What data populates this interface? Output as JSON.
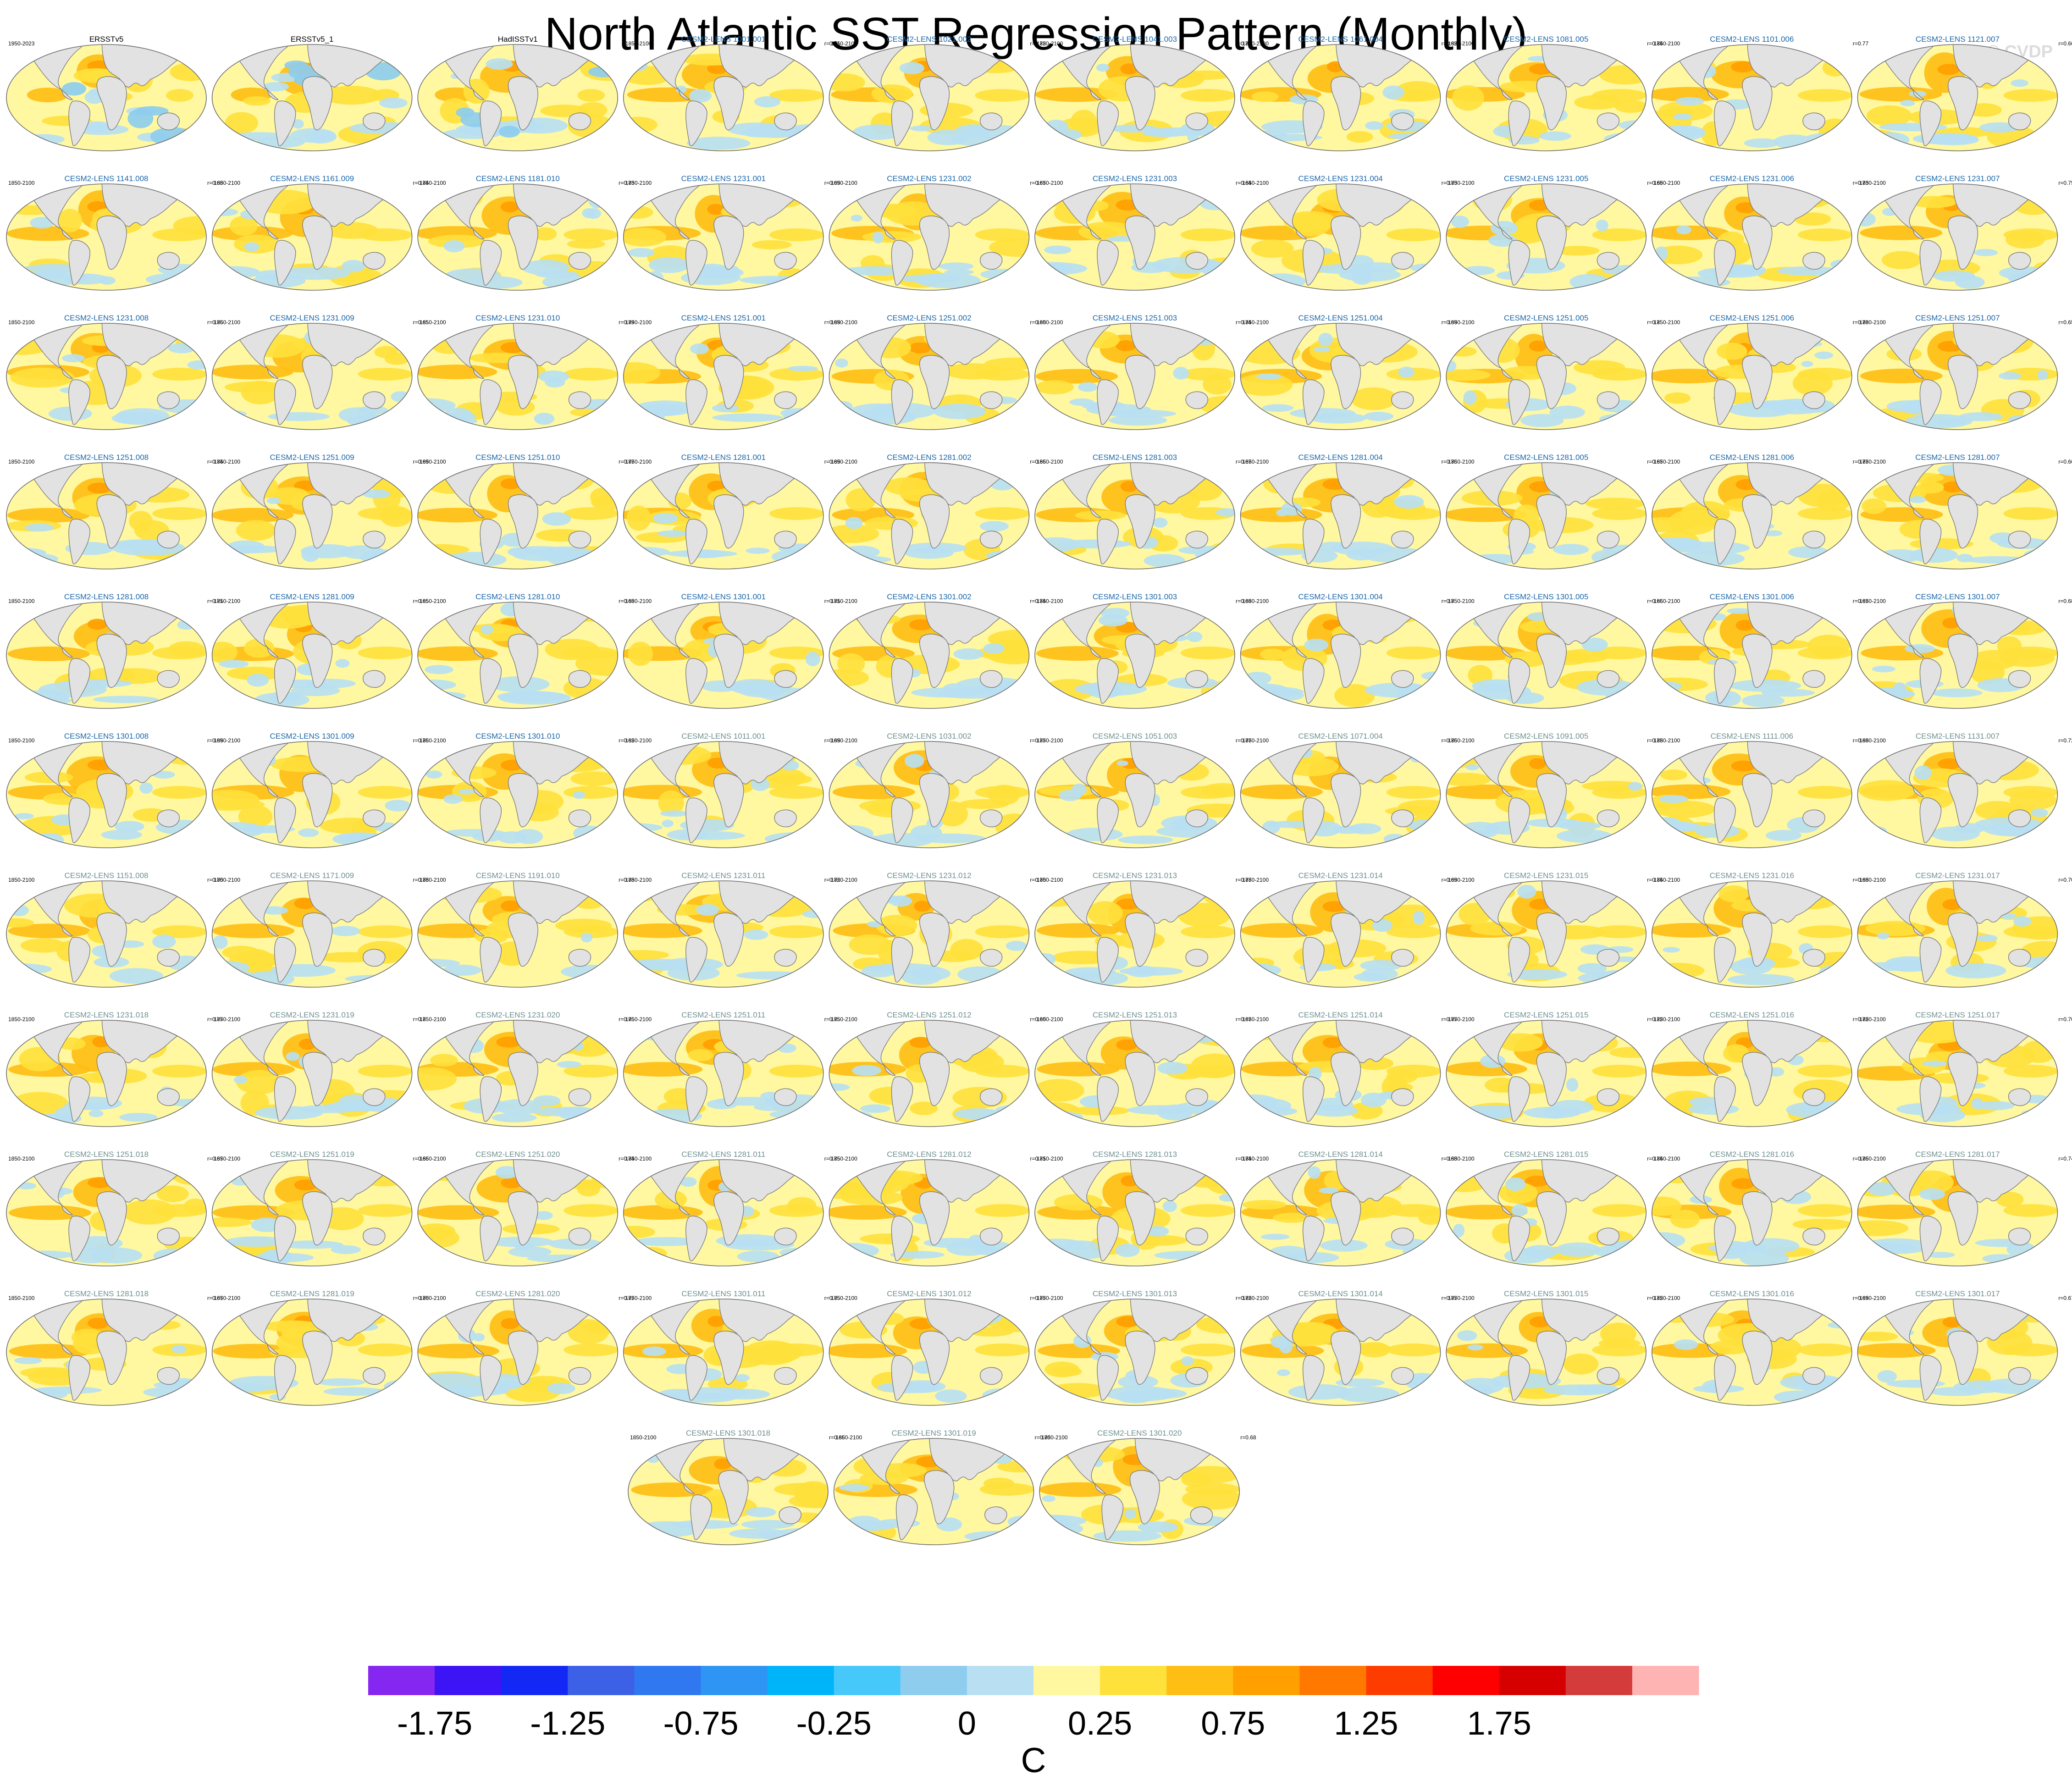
{
  "title": "North Atlantic SST Regression Pattern (Monthly)",
  "watermark": "© CVDP",
  "chart_data": {
    "type": "map-panel-grid",
    "title": "North Atlantic SST Regression Pattern (Monthly)",
    "colorbar": {
      "unit": "C",
      "colors": [
        "#8527f0",
        "#3c14f5",
        "#1428f5",
        "#3c60e6",
        "#2f78f0",
        "#2e95f5",
        "#00b4fa",
        "#46c8fa",
        "#8ecdee",
        "#b9e0f2",
        "#fff8a0",
        "#ffe13c",
        "#ffbe14",
        "#ffa000",
        "#ff7800",
        "#ff3c00",
        "#ff0000",
        "#d60000",
        "#d43c3c",
        "#ffb4b4"
      ],
      "tick_labels": [
        "-1.75",
        "-1.25",
        "-0.75",
        "-0.25",
        "0",
        "0.25",
        "0.75",
        "1.25",
        "1.75"
      ],
      "boundaries": [
        -2.0,
        -1.75,
        -1.5,
        -1.25,
        -1.0,
        -0.75,
        -0.5,
        -0.25,
        -0.1,
        0.0,
        0.1,
        0.25,
        0.5,
        0.75,
        1.0,
        1.25,
        1.5,
        1.75,
        2.0
      ]
    },
    "panels": [
      {
        "name": "ERSSTv5",
        "period": "1950-2023",
        "r": "",
        "kind": "obs"
      },
      {
        "name": "ERSSTv5_1",
        "period": "",
        "r": "",
        "kind": "obs"
      },
      {
        "name": "HadISSTv1",
        "period": "",
        "r": "",
        "kind": "obs"
      },
      {
        "name": "CESM2-LENS 1001.001",
        "period": "1850-2100",
        "r": "r=0.71",
        "kind": "blue"
      },
      {
        "name": "CESM2-LENS 1021.002",
        "period": "1850-2100",
        "r": "r=0.72",
        "kind": "blue"
      },
      {
        "name": "CESM2-LENS 1041.003",
        "period": "1850-2100",
        "r": "r=0.74",
        "kind": "blue"
      },
      {
        "name": "CESM2-LENS 1061.004",
        "period": "1850-2100",
        "r": "r=0.62",
        "kind": "blue"
      },
      {
        "name": "CESM2-LENS 1081.005",
        "period": "1850-2100",
        "r": "r=0.74",
        "kind": "blue"
      },
      {
        "name": "CESM2-LENS 1101.006",
        "period": "1850-2100",
        "r": "r=0.77",
        "kind": "blue"
      },
      {
        "name": "CESM2-LENS 1121.007",
        "period": "",
        "r": "r=0.66",
        "kind": "blue"
      },
      {
        "name": "CESM2-LENS 1141.008",
        "period": "1850-2100",
        "r": "r=0.68",
        "kind": "blue"
      },
      {
        "name": "CESM2-LENS 1161.009",
        "period": "1850-2100",
        "r": "r=0.74",
        "kind": "blue"
      },
      {
        "name": "CESM2-LENS 1181.010",
        "period": "1850-2100",
        "r": "r=0.73",
        "kind": "blue"
      },
      {
        "name": "CESM2-LENS 1231.001",
        "period": "1850-2100",
        "r": "r=0.69",
        "kind": "blue"
      },
      {
        "name": "CESM2-LENS 1231.002",
        "period": "1850-2100",
        "r": "r=0.67",
        "kind": "blue"
      },
      {
        "name": "CESM2-LENS 1231.003",
        "period": "1850-2100",
        "r": "r=0.64",
        "kind": "blue"
      },
      {
        "name": "CESM2-LENS 1231.004",
        "period": "1850-2100",
        "r": "r=0.73",
        "kind": "blue"
      },
      {
        "name": "CESM2-LENS 1231.005",
        "period": "1850-2100",
        "r": "r=0.68",
        "kind": "blue"
      },
      {
        "name": "CESM2-LENS 1231.006",
        "period": "1850-2100",
        "r": "r=0.73",
        "kind": "blue"
      },
      {
        "name": "CESM2-LENS 1231.007",
        "period": "1850-2100",
        "r": "r=0.75",
        "kind": "blue"
      },
      {
        "name": "CESM2-LENS 1231.008",
        "period": "1850-2100",
        "r": "r=0.76",
        "kind": "blue"
      },
      {
        "name": "CESM2-LENS 1231.009",
        "period": "1850-2100",
        "r": "r=0.65",
        "kind": "blue"
      },
      {
        "name": "CESM2-LENS 1231.010",
        "period": "1850-2100",
        "r": "r=0.79",
        "kind": "blue"
      },
      {
        "name": "CESM2-LENS 1251.001",
        "period": "1850-2100",
        "r": "r=0.69",
        "kind": "blue"
      },
      {
        "name": "CESM2-LENS 1251.002",
        "period": "1850-2100",
        "r": "r=0.60",
        "kind": "blue"
      },
      {
        "name": "CESM2-LENS 1251.003",
        "period": "1850-2100",
        "r": "r=0.74",
        "kind": "blue"
      },
      {
        "name": "CESM2-LENS 1251.004",
        "period": "1850-2100",
        "r": "r=0.69",
        "kind": "blue"
      },
      {
        "name": "CESM2-LENS 1251.005",
        "period": "1850-2100",
        "r": "r=0.7",
        "kind": "blue"
      },
      {
        "name": "CESM2-LENS 1251.006",
        "period": "1850-2100",
        "r": "r=0.78",
        "kind": "blue"
      },
      {
        "name": "CESM2-LENS 1251.007",
        "period": "1850-2100",
        "r": "r=0.65",
        "kind": "blue"
      },
      {
        "name": "CESM2-LENS 1251.008",
        "period": "1850-2100",
        "r": "r=0.74",
        "kind": "blue"
      },
      {
        "name": "CESM2-LENS 1251.009",
        "period": "1850-2100",
        "r": "r=0.69",
        "kind": "blue"
      },
      {
        "name": "CESM2-LENS 1251.010",
        "period": "1850-2100",
        "r": "r=0.77",
        "kind": "blue"
      },
      {
        "name": "CESM2-LENS 1281.001",
        "period": "1850-2100",
        "r": "r=0.69",
        "kind": "blue"
      },
      {
        "name": "CESM2-LENS 1281.002",
        "period": "1850-2100",
        "r": "r=0.66",
        "kind": "blue"
      },
      {
        "name": "CESM2-LENS 1281.003",
        "period": "1850-2100",
        "r": "r=0.67",
        "kind": "blue"
      },
      {
        "name": "CESM2-LENS 1281.004",
        "period": "1850-2100",
        "r": "r=0.76",
        "kind": "blue"
      },
      {
        "name": "CESM2-LENS 1281.005",
        "period": "1850-2100",
        "r": "r=0.67",
        "kind": "blue"
      },
      {
        "name": "CESM2-LENS 1281.006",
        "period": "1850-2100",
        "r": "r=0.77",
        "kind": "blue"
      },
      {
        "name": "CESM2-LENS 1281.007",
        "period": "1850-2100",
        "r": "r=0.66",
        "kind": "blue"
      },
      {
        "name": "CESM2-LENS 1281.008",
        "period": "1850-2100",
        "r": "r=0.71",
        "kind": "blue"
      },
      {
        "name": "CESM2-LENS 1281.009",
        "period": "1850-2100",
        "r": "r=0.65",
        "kind": "blue"
      },
      {
        "name": "CESM2-LENS 1281.010",
        "period": "1850-2100",
        "r": "r=0.68",
        "kind": "blue"
      },
      {
        "name": "CESM2-LENS 1301.001",
        "period": "1850-2100",
        "r": "r=0.71",
        "kind": "blue"
      },
      {
        "name": "CESM2-LENS 1301.002",
        "period": "1850-2100",
        "r": "r=0.74",
        "kind": "blue"
      },
      {
        "name": "CESM2-LENS 1301.003",
        "period": "1850-2100",
        "r": "r=0.68",
        "kind": "blue"
      },
      {
        "name": "CESM2-LENS 1301.004",
        "period": "1850-2100",
        "r": "r=0.7",
        "kind": "blue"
      },
      {
        "name": "CESM2-LENS 1301.005",
        "period": "1850-2100",
        "r": "r=0.66",
        "kind": "blue"
      },
      {
        "name": "CESM2-LENS 1301.006",
        "period": "1850-2100",
        "r": "r=0.67",
        "kind": "blue"
      },
      {
        "name": "CESM2-LENS 1301.007",
        "period": "1850-2100",
        "r": "r=0.68",
        "kind": "blue"
      },
      {
        "name": "CESM2-LENS 1301.008",
        "period": "1850-2100",
        "r": "r=0.69",
        "kind": "blue"
      },
      {
        "name": "CESM2-LENS 1301.009",
        "period": "1850-2100",
        "r": "r=0.76",
        "kind": "blue"
      },
      {
        "name": "CESM2-LENS 1301.010",
        "period": "1850-2100",
        "r": "r=0.62",
        "kind": "blue"
      },
      {
        "name": "CESM2-LENS 1011.001",
        "period": "1850-2100",
        "r": "r=0.69",
        "kind": "gray"
      },
      {
        "name": "CESM2-LENS 1031.002",
        "period": "1850-2100",
        "r": "r=0.77",
        "kind": "gray"
      },
      {
        "name": "CESM2-LENS 1051.003",
        "period": "1850-2100",
        "r": "r=0.77",
        "kind": "gray"
      },
      {
        "name": "CESM2-LENS 1071.004",
        "period": "1850-2100",
        "r": "r=0.76",
        "kind": "gray"
      },
      {
        "name": "CESM2-LENS 1091.005",
        "period": "1850-2100",
        "r": "r=0.78",
        "kind": "gray"
      },
      {
        "name": "CESM2-LENS 1111.006",
        "period": "1850-2100",
        "r": "r=0.68",
        "kind": "gray"
      },
      {
        "name": "CESM2-LENS 1131.007",
        "period": "1850-2100",
        "r": "r=0.72",
        "kind": "gray"
      },
      {
        "name": "CESM2-LENS 1151.008",
        "period": "1850-2100",
        "r": "r=0.70",
        "kind": "gray"
      },
      {
        "name": "CESM2-LENS 1171.009",
        "period": "1850-2100",
        "r": "r=0.78",
        "kind": "gray"
      },
      {
        "name": "CESM2-LENS 1191.010",
        "period": "1850-2100",
        "r": "r=0.78",
        "kind": "gray"
      },
      {
        "name": "CESM2-LENS 1231.011",
        "period": "1850-2100",
        "r": "r=0.72",
        "kind": "gray"
      },
      {
        "name": "CESM2-LENS 1231.012",
        "period": "1850-2100",
        "r": "r=0.70",
        "kind": "gray"
      },
      {
        "name": "CESM2-LENS 1231.013",
        "period": "1850-2100",
        "r": "r=0.77",
        "kind": "gray"
      },
      {
        "name": "CESM2-LENS 1231.014",
        "period": "1850-2100",
        "r": "r=0.69",
        "kind": "gray"
      },
      {
        "name": "CESM2-LENS 1231.015",
        "period": "1850-2100",
        "r": "r=0.74",
        "kind": "gray"
      },
      {
        "name": "CESM2-LENS 1231.016",
        "period": "1850-2100",
        "r": "r=0.68",
        "kind": "gray"
      },
      {
        "name": "CESM2-LENS 1231.017",
        "period": "1850-2100",
        "r": "r=0.70",
        "kind": "gray"
      },
      {
        "name": "CESM2-LENS 1231.018",
        "period": "1850-2100",
        "r": "r=0.77",
        "kind": "gray"
      },
      {
        "name": "CESM2-LENS 1231.019",
        "period": "1850-2100",
        "r": "r=0.7",
        "kind": "gray"
      },
      {
        "name": "CESM2-LENS 1231.020",
        "period": "1850-2100",
        "r": "r=0.75",
        "kind": "gray"
      },
      {
        "name": "CESM2-LENS 1251.011",
        "period": "1850-2100",
        "r": "r=0.75",
        "kind": "gray"
      },
      {
        "name": "CESM2-LENS 1251.012",
        "period": "1850-2100",
        "r": "r=0.60",
        "kind": "gray"
      },
      {
        "name": "CESM2-LENS 1251.013",
        "period": "1850-2100",
        "r": "r=0.67",
        "kind": "gray"
      },
      {
        "name": "CESM2-LENS 1251.014",
        "period": "1850-2100",
        "r": "r=0.77",
        "kind": "gray"
      },
      {
        "name": "CESM2-LENS 1251.015",
        "period": "1850-2100",
        "r": "r=0.72",
        "kind": "gray"
      },
      {
        "name": "CESM2-LENS 1251.016",
        "period": "1850-2100",
        "r": "r=0.72",
        "kind": "gray"
      },
      {
        "name": "CESM2-LENS 1251.017",
        "period": "1850-2100",
        "r": "r=0.70",
        "kind": "gray"
      },
      {
        "name": "CESM2-LENS 1251.018",
        "period": "1850-2100",
        "r": "r=0.67",
        "kind": "gray"
      },
      {
        "name": "CESM2-LENS 1251.019",
        "period": "1850-2100",
        "r": "r=0.66",
        "kind": "gray"
      },
      {
        "name": "CESM2-LENS 1251.020",
        "period": "1850-2100",
        "r": "r=0.74",
        "kind": "gray"
      },
      {
        "name": "CESM2-LENS 1281.011",
        "period": "1850-2100",
        "r": "r=0.75",
        "kind": "gray"
      },
      {
        "name": "CESM2-LENS 1281.012",
        "period": "1850-2100",
        "r": "r=0.71",
        "kind": "gray"
      },
      {
        "name": "CESM2-LENS 1281.013",
        "period": "1850-2100",
        "r": "r=0.74",
        "kind": "gray"
      },
      {
        "name": "CESM2-LENS 1281.014",
        "period": "1850-2100",
        "r": "r=0.68",
        "kind": "gray"
      },
      {
        "name": "CESM2-LENS 1281.015",
        "period": "1850-2100",
        "r": "r=0.74",
        "kind": "gray"
      },
      {
        "name": "CESM2-LENS 1281.016",
        "period": "1850-2100",
        "r": "r=0.76",
        "kind": "gray"
      },
      {
        "name": "CESM2-LENS 1281.017",
        "period": "1850-2100",
        "r": "r=0.74",
        "kind": "gray"
      },
      {
        "name": "CESM2-LENS 1281.018",
        "period": "1850-2100",
        "r": "r=0.67",
        "kind": "gray"
      },
      {
        "name": "CESM2-LENS 1281.019",
        "period": "1850-2100",
        "r": "r=0.70",
        "kind": "gray"
      },
      {
        "name": "CESM2-LENS 1281.020",
        "period": "1850-2100",
        "r": "r=0.77",
        "kind": "gray"
      },
      {
        "name": "CESM2-LENS 1301.011",
        "period": "1850-2100",
        "r": "r=0.75",
        "kind": "gray"
      },
      {
        "name": "CESM2-LENS 1301.012",
        "period": "1850-2100",
        "r": "r=0.77",
        "kind": "gray"
      },
      {
        "name": "CESM2-LENS 1301.013",
        "period": "1850-2100",
        "r": "r=0.72",
        "kind": "gray"
      },
      {
        "name": "CESM2-LENS 1301.014",
        "period": "1850-2100",
        "r": "r=0.77",
        "kind": "gray"
      },
      {
        "name": "CESM2-LENS 1301.015",
        "period": "1850-2100",
        "r": "r=0.72",
        "kind": "gray"
      },
      {
        "name": "CESM2-LENS 1301.016",
        "period": "1850-2100",
        "r": "r=0.69",
        "kind": "gray"
      },
      {
        "name": "CESM2-LENS 1301.017",
        "period": "1850-2100",
        "r": "r=0.67",
        "kind": "gray"
      },
      {
        "name": "CESM2-LENS 1301.018",
        "period": "1850-2100",
        "r": "r=0.66",
        "kind": "gray"
      },
      {
        "name": "CESM2-LENS 1301.019",
        "period": "1850-2100",
        "r": "r=0.70",
        "kind": "gray"
      },
      {
        "name": "CESM2-LENS 1301.020",
        "period": "1850-2100",
        "r": "r=0.68",
        "kind": "gray"
      }
    ]
  }
}
